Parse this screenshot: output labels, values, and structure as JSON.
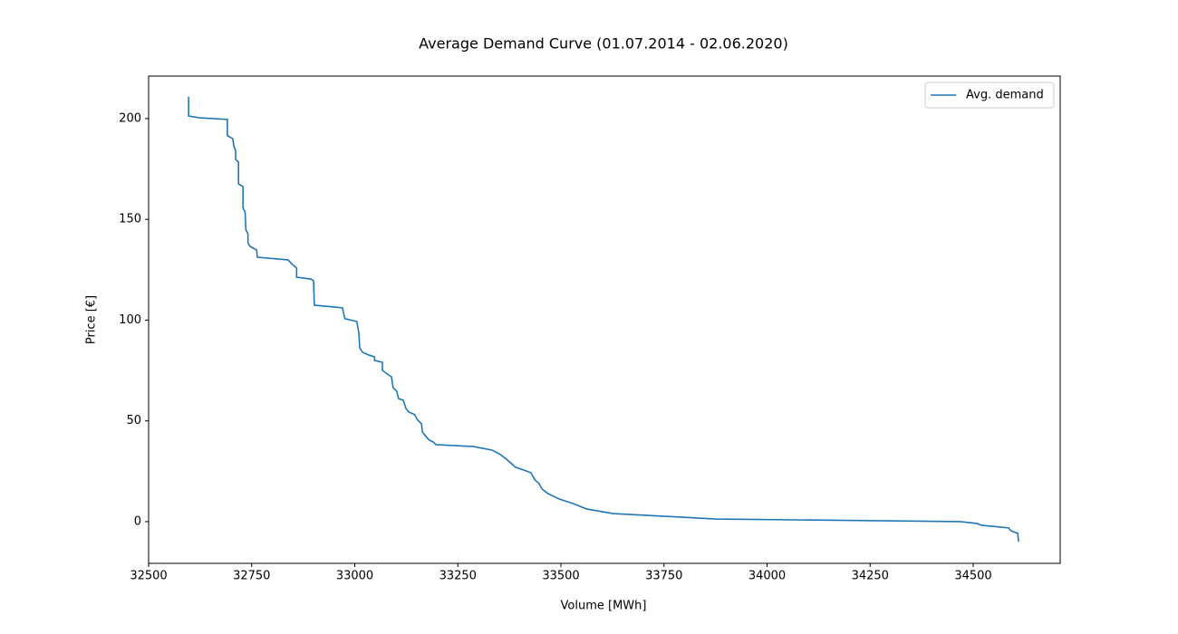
{
  "chart_data": {
    "type": "line",
    "title": "Average Demand Curve (01.07.2014 - 02.06.2020)",
    "x_label": "Volume [MWh]",
    "y_label": "Price [€]",
    "x": [
      32597,
      32597,
      32623,
      32691,
      32691,
      32704,
      32707,
      32711,
      32711,
      32718,
      32718,
      32729,
      32729,
      32734,
      32736,
      32741,
      32741,
      32746,
      32762,
      32764,
      32838,
      32849,
      32859,
      32859,
      32893,
      32900,
      32902,
      32970,
      32974,
      32976,
      33005,
      33010,
      33012,
      33019,
      33034,
      33048,
      33048,
      33067,
      33067,
      33082,
      33089,
      33093,
      33102,
      33106,
      33118,
      33124,
      33131,
      33146,
      33151,
      33162,
      33164,
      33173,
      33181,
      33190,
      33197,
      33287,
      33333,
      33353,
      33365,
      33375,
      33390,
      33410,
      33427,
      33437,
      33447,
      33454,
      33469,
      33482,
      33496,
      33529,
      33562,
      33627,
      33876,
      34469,
      34509,
      34520,
      34586,
      34591,
      34608,
      34610
    ],
    "series": [
      {
        "name": "Avg. demand",
        "color": "#1f77b4",
        "values": [
          210.8,
          201.3,
          200.4,
          199.6,
          191.5,
          190.1,
          186.1,
          184.3,
          179.8,
          178.4,
          167.6,
          166.3,
          155.5,
          153.7,
          144.7,
          142.9,
          138.4,
          136.6,
          134.8,
          131.2,
          129.9,
          127.6,
          125.8,
          121.3,
          120.4,
          119.6,
          107.4,
          106.1,
          102.5,
          100.7,
          99.3,
          93.5,
          86.3,
          84.0,
          82.7,
          81.8,
          80.0,
          79.1,
          75.1,
          72.8,
          71.9,
          66.5,
          64.7,
          61.1,
          60.2,
          56.2,
          54.4,
          53.0,
          50.8,
          48.5,
          44.5,
          42.2,
          40.4,
          39.6,
          38.2,
          37.3,
          35.5,
          33.3,
          31.5,
          29.7,
          27.0,
          25.6,
          24.3,
          20.7,
          18.9,
          16.2,
          13.9,
          12.6,
          11.2,
          9.0,
          6.3,
          4.0,
          1.3,
          0,
          -0.9,
          -1.8,
          -3.1,
          -4.5,
          -5.8,
          -9.9
        ]
      }
    ],
    "xlim": [
      32500,
      34711
    ],
    "ylim": [
      -20.7,
      221.1
    ],
    "xticks": [
      32500,
      32750,
      33000,
      33250,
      33500,
      33750,
      34000,
      34250,
      34500
    ],
    "yticks": [
      0,
      50,
      100,
      150,
      200
    ],
    "legend": "upper right",
    "grid": false
  }
}
